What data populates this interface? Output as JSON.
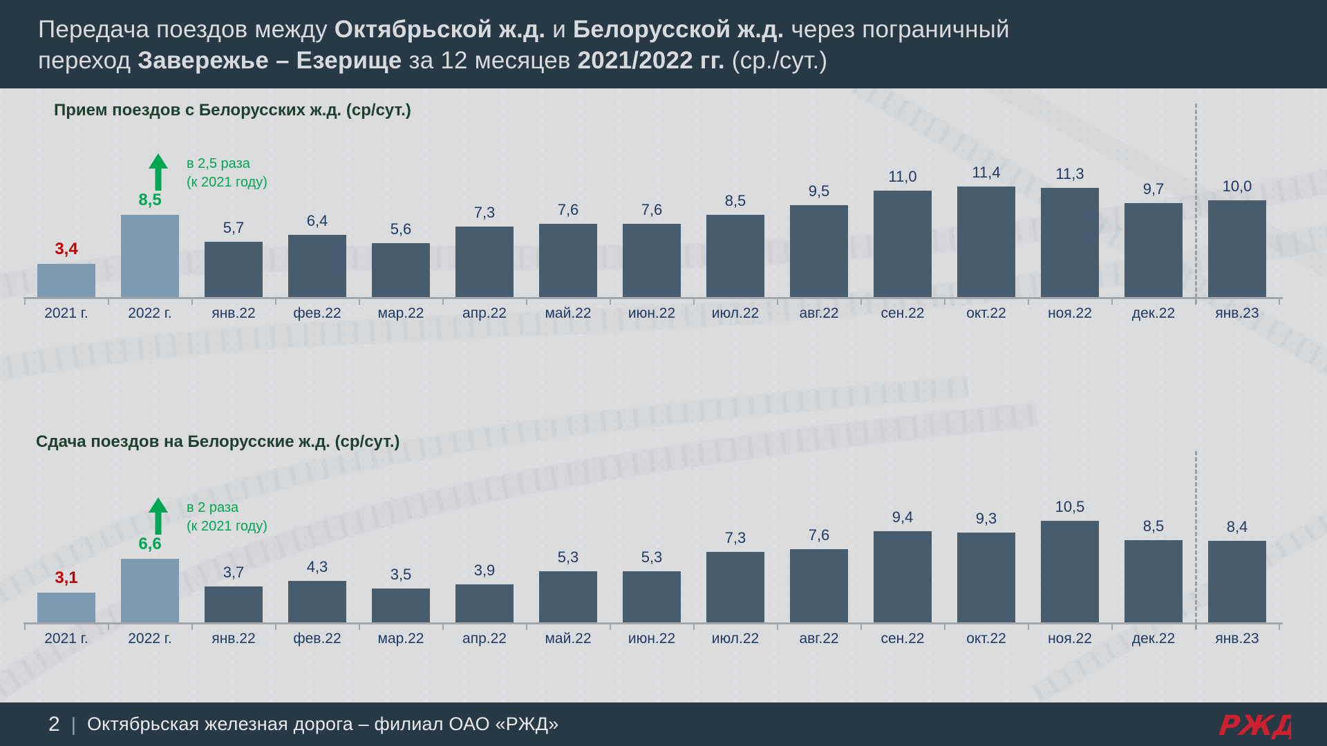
{
  "header": {
    "line1": [
      {
        "text": "Передача поездов между ",
        "strong": false
      },
      {
        "text": "Октябрьской ж.д.",
        "strong": true
      },
      {
        "text": " и ",
        "strong": false
      },
      {
        "text": "Белорусской ж.д.",
        "strong": true
      },
      {
        "text": " через пограничный",
        "strong": false
      }
    ],
    "line2": [
      {
        "text": "переход ",
        "strong": false
      },
      {
        "text": "Завережье – Езерище",
        "strong": true
      },
      {
        "text": " за 12 месяцев ",
        "strong": false
      },
      {
        "text": "2021/2022 гг.",
        "strong": true
      },
      {
        "text": " (ср./сут.)",
        "strong": false
      }
    ]
  },
  "chart_data": [
    {
      "type": "bar",
      "title": "Прием поездов с Белорусских ж.д.  (ср/сут.)",
      "categories": [
        "2021 г.",
        "2022 г.",
        "янв.22",
        "фев.22",
        "мар.22",
        "апр.22",
        "май.22",
        "июн.22",
        "июл.22",
        "авг.22",
        "сен.22",
        "окт.22",
        "ноя.22",
        "дек.22",
        "янв.23"
      ],
      "values": [
        3.4,
        8.5,
        5.7,
        6.4,
        5.6,
        7.3,
        7.6,
        7.6,
        8.5,
        9.5,
        11.0,
        11.4,
        11.3,
        9.7,
        10.0
      ],
      "labels": [
        "3,4",
        "8,5",
        "5,7",
        "6,4",
        "5,6",
        "7,3",
        "7,6",
        "7,6",
        "8,5",
        "9,5",
        "11,0",
        "11,4",
        "11,3",
        "9,7",
        "10,0"
      ],
      "annotation": {
        "line1": "в 2,5 раза",
        "line2": "(к 2021 году)"
      },
      "xlabel": "",
      "ylabel": "",
      "ylim": [
        0,
        12
      ],
      "grid": false,
      "legend": false,
      "dashed_separator_before": "янв.23",
      "highlight_labels": {
        "2021 г.": "red-bold",
        "2022 г.": "green-bold"
      }
    },
    {
      "type": "bar",
      "title": "Сдача поездов на Белорусские ж.д. (ср/сут.)",
      "categories": [
        "2021 г.",
        "2022 г.",
        "янв.22",
        "фев.22",
        "мар.22",
        "апр.22",
        "май.22",
        "июн.22",
        "июл.22",
        "авг.22",
        "сен.22",
        "окт.22",
        "ноя.22",
        "дек.22",
        "янв.23"
      ],
      "values": [
        3.1,
        6.6,
        3.7,
        4.3,
        3.5,
        3.9,
        5.3,
        5.3,
        7.3,
        7.6,
        9.4,
        9.3,
        10.5,
        8.5,
        8.4
      ],
      "labels": [
        "3,1",
        "6,6",
        "3,7",
        "4,3",
        "3,5",
        "3,9",
        "5,3",
        "5,3",
        "7,3",
        "7,6",
        "9,4",
        "9,3",
        "10,5",
        "8,5",
        "8,4"
      ],
      "annotation": {
        "line1": "в 2 раза",
        "line2": "(к 2021 году)"
      },
      "xlabel": "",
      "ylabel": "",
      "ylim": [
        0,
        12
      ],
      "grid": false,
      "legend": false,
      "dashed_separator_before": "янв.23",
      "highlight_labels": {
        "2021 г.": "red-bold",
        "2022 г.": "green-bold"
      }
    }
  ],
  "footer": {
    "page_number": "2",
    "divider": "|",
    "organization": "Октябрьская железная дорога – филиал ОАО «РЖД»",
    "logo_text": "РЖД"
  },
  "colors": {
    "header_bg": "#283946",
    "page_bg": "#dbdcde",
    "header_text": "#d8dbde",
    "bar_monthly": "#475c6c",
    "bar_annual": "#7e9ab0",
    "value_navy": "#1f3864",
    "accent_green": "#00a651",
    "accent_red": "#c00000",
    "chart_title_green": "#20402f",
    "axis_gray": "#a3a7ab",
    "logo_red": "#d01f2f"
  }
}
